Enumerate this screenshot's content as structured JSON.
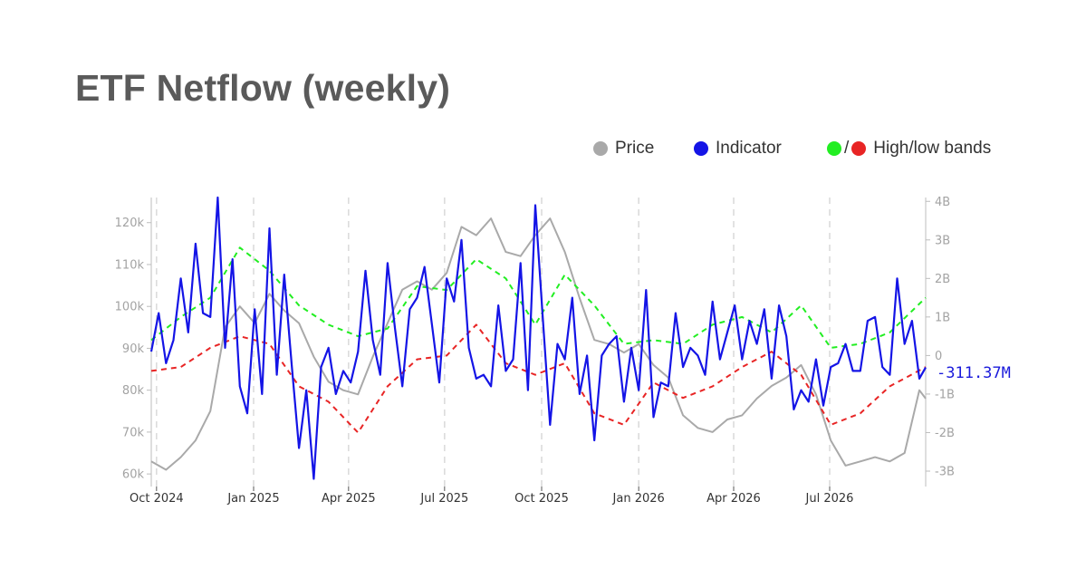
{
  "title": "ETF Netflow (weekly)",
  "legend": {
    "price_label": "Price",
    "indicator_label": "Indicator",
    "bands_separator": "/",
    "bands_label": "High/low bands"
  },
  "colors": {
    "price": "#a9a9a9",
    "indicator": "#1414e6",
    "high_band": "#22ee22",
    "low_band": "#e82525",
    "vertical_grid": "#d9d9d9",
    "axis": "#bdbdbd"
  },
  "chart_data": {
    "type": "line",
    "title": "ETF Netflow (weekly)",
    "grid": "vertical dashed at x ticks",
    "legend_position": "top-right",
    "x_ticks": [
      "Oct 2024",
      "Jan 2025",
      "Apr 2025",
      "Jul 2025",
      "Oct 2025",
      "Jan 2026",
      "Apr 2026",
      "Jul 2026"
    ],
    "x_range": [
      "2024-09-26",
      "2026-09-30"
    ],
    "y_left_ticks": [
      "60k",
      "70k",
      "80k",
      "90k",
      "100k",
      "110k",
      "120k"
    ],
    "y_left_range": [
      57000,
      126000
    ],
    "y_right_ticks": [
      "-3B",
      "-2B",
      "-1B",
      "0",
      "1B",
      "2B",
      "3B",
      "4B"
    ],
    "y_right_range": [
      -3.4,
      4.1
    ],
    "last_value_label": "-311.37M",
    "series": [
      {
        "name": "Price",
        "axis": "left",
        "x": [
          "2024-09-26",
          "2024-10-10",
          "2024-10-24",
          "2024-11-07",
          "2024-11-21",
          "2024-12-05",
          "2024-12-19",
          "2025-01-02",
          "2025-01-16",
          "2025-01-30",
          "2025-02-13",
          "2025-02-27",
          "2025-03-13",
          "2025-03-27",
          "2025-04-10",
          "2025-04-24",
          "2025-05-08",
          "2025-05-22",
          "2025-06-05",
          "2025-06-19",
          "2025-07-03",
          "2025-07-17",
          "2025-07-31",
          "2025-08-14",
          "2025-08-28",
          "2025-09-11",
          "2025-09-25",
          "2025-10-09",
          "2025-10-23",
          "2025-11-06",
          "2025-11-20",
          "2025-12-04",
          "2025-12-18",
          "2026-01-01",
          "2026-01-15",
          "2026-01-29",
          "2026-02-12",
          "2026-02-26",
          "2026-03-12",
          "2026-03-26",
          "2026-04-09",
          "2026-04-23",
          "2026-05-07",
          "2026-05-21",
          "2026-06-04",
          "2026-06-18",
          "2026-07-02",
          "2026-07-16",
          "2026-07-30",
          "2026-08-13",
          "2026-08-27",
          "2026-09-10",
          "2026-09-24",
          "2026-09-30"
        ],
        "values": [
          63000,
          61000,
          64000,
          68000,
          75000,
          95000,
          100000,
          96000,
          103000,
          99000,
          96000,
          88000,
          82000,
          80000,
          79000,
          88000,
          96000,
          104000,
          106000,
          104000,
          108000,
          119000,
          117000,
          121000,
          113000,
          112000,
          117000,
          121000,
          113000,
          102000,
          92000,
          91000,
          89000,
          91000,
          86000,
          83000,
          74000,
          71000,
          70000,
          73000,
          74000,
          78000,
          81000,
          83000,
          86000,
          79000,
          68000,
          62000,
          63000,
          64000,
          63000,
          65000,
          80000,
          78000
        ]
      },
      {
        "name": "Indicator",
        "axis": "right",
        "x": [
          "2024-09-26",
          "2024-10-03",
          "2024-10-10",
          "2024-10-17",
          "2024-10-24",
          "2024-10-31",
          "2024-11-07",
          "2024-11-14",
          "2024-11-21",
          "2024-11-28",
          "2024-12-05",
          "2024-12-12",
          "2024-12-19",
          "2024-12-26",
          "2025-01-02",
          "2025-01-09",
          "2025-01-16",
          "2025-01-23",
          "2025-01-30",
          "2025-02-06",
          "2025-02-13",
          "2025-02-20",
          "2025-02-27",
          "2025-03-06",
          "2025-03-13",
          "2025-03-20",
          "2025-03-27",
          "2025-04-03",
          "2025-04-10",
          "2025-04-17",
          "2025-04-24",
          "2025-05-01",
          "2025-05-08",
          "2025-05-15",
          "2025-05-22",
          "2025-05-29",
          "2025-06-05",
          "2025-06-12",
          "2025-06-19",
          "2025-06-26",
          "2025-07-03",
          "2025-07-10",
          "2025-07-17",
          "2025-07-24",
          "2025-07-31",
          "2025-08-07",
          "2025-08-14",
          "2025-08-21",
          "2025-08-28",
          "2025-09-04",
          "2025-09-11",
          "2025-09-18",
          "2025-09-25",
          "2025-10-02",
          "2025-10-09",
          "2025-10-16",
          "2025-10-23",
          "2025-10-30",
          "2025-11-06",
          "2025-11-13",
          "2025-11-20",
          "2025-11-27",
          "2025-12-04",
          "2025-12-11",
          "2025-12-18",
          "2025-12-25",
          "2026-01-01",
          "2026-01-08",
          "2026-01-15",
          "2026-01-22",
          "2026-01-29",
          "2026-02-05",
          "2026-02-12",
          "2026-02-19",
          "2026-02-26",
          "2026-03-05",
          "2026-03-12",
          "2026-03-19",
          "2026-03-26",
          "2026-04-02",
          "2026-04-09",
          "2026-04-16",
          "2026-04-23",
          "2026-04-30",
          "2026-05-07",
          "2026-05-14",
          "2026-05-21",
          "2026-05-28",
          "2026-06-04",
          "2026-06-11",
          "2026-06-18",
          "2026-06-25",
          "2026-07-02",
          "2026-07-09",
          "2026-07-16",
          "2026-07-23",
          "2026-07-30",
          "2026-08-06",
          "2026-08-13",
          "2026-08-20",
          "2026-08-27",
          "2026-09-03",
          "2026-09-10",
          "2026-09-17",
          "2026-09-24",
          "2026-09-30"
        ],
        "values": [
          0.1,
          1.1,
          -0.2,
          0.4,
          2.0,
          0.6,
          2.9,
          1.1,
          1.0,
          4.1,
          0.2,
          2.5,
          -0.8,
          -1.5,
          1.2,
          -1.0,
          3.3,
          -0.5,
          2.1,
          -0.2,
          -2.4,
          -0.9,
          -3.2,
          -0.3,
          0.2,
          -1.0,
          -0.4,
          -0.7,
          0.1,
          2.2,
          0.4,
          -0.5,
          2.4,
          0.7,
          -0.8,
          1.2,
          1.5,
          2.3,
          0.8,
          -0.7,
          2.0,
          1.4,
          3.0,
          0.2,
          -0.6,
          -0.5,
          -0.8,
          1.3,
          -0.4,
          -0.1,
          2.4,
          -0.9,
          3.9,
          1.0,
          -1.8,
          0.3,
          -0.1,
          1.5,
          -1.0,
          0.0,
          -2.2,
          0.0,
          0.3,
          0.5,
          -1.2,
          0.2,
          -0.9,
          1.7,
          -1.6,
          -0.7,
          -0.8,
          1.1,
          -0.3,
          0.2,
          0.0,
          -0.5,
          1.4,
          -0.1,
          0.6,
          1.3,
          -0.1,
          0.9,
          0.3,
          1.2,
          -0.6,
          1.3,
          0.5,
          -1.4,
          -0.9,
          -1.2,
          -0.1,
          -1.3,
          -0.3,
          -0.2,
          0.3,
          -0.4,
          -0.4,
          0.9,
          1.0,
          -0.3,
          -0.5,
          2.0,
          0.3,
          0.9,
          -0.6,
          -0.31
        ]
      },
      {
        "name": "High band",
        "axis": "right",
        "x": [
          "2024-09-26",
          "2024-10-24",
          "2024-11-21",
          "2024-12-19",
          "2025-01-16",
          "2025-02-13",
          "2025-03-13",
          "2025-04-10",
          "2025-05-08",
          "2025-06-05",
          "2025-07-03",
          "2025-07-31",
          "2025-08-28",
          "2025-09-25",
          "2025-10-23",
          "2025-11-20",
          "2025-12-18",
          "2026-01-15",
          "2026-02-12",
          "2026-03-12",
          "2026-04-09",
          "2026-05-07",
          "2026-06-04",
          "2026-07-02",
          "2026-07-30",
          "2026-08-27",
          "2026-09-30"
        ],
        "values": [
          0.4,
          1.0,
          1.5,
          2.8,
          2.2,
          1.3,
          0.8,
          0.5,
          0.7,
          1.8,
          1.7,
          2.5,
          2.0,
          0.8,
          2.1,
          1.3,
          0.3,
          0.4,
          0.3,
          0.8,
          1.0,
          0.6,
          1.3,
          0.2,
          0.3,
          0.6,
          1.5
        ]
      },
      {
        "name": "Low band",
        "axis": "right",
        "x": [
          "2024-09-26",
          "2024-10-24",
          "2024-11-21",
          "2024-12-19",
          "2025-01-16",
          "2025-02-13",
          "2025-03-13",
          "2025-04-10",
          "2025-05-08",
          "2025-06-05",
          "2025-07-03",
          "2025-07-31",
          "2025-08-28",
          "2025-09-25",
          "2025-10-23",
          "2025-11-20",
          "2025-12-18",
          "2026-01-15",
          "2026-02-12",
          "2026-03-12",
          "2026-04-09",
          "2026-05-07",
          "2026-06-04",
          "2026-07-02",
          "2026-07-30",
          "2026-08-27",
          "2026-09-30"
        ],
        "values": [
          -0.4,
          -0.3,
          0.2,
          0.5,
          0.3,
          -0.8,
          -1.2,
          -2.0,
          -0.8,
          -0.1,
          0.0,
          0.8,
          -0.2,
          -0.5,
          -0.2,
          -1.5,
          -1.8,
          -0.7,
          -1.1,
          -0.8,
          -0.3,
          0.1,
          -0.5,
          -1.8,
          -1.5,
          -0.8,
          -0.3
        ]
      }
    ]
  }
}
